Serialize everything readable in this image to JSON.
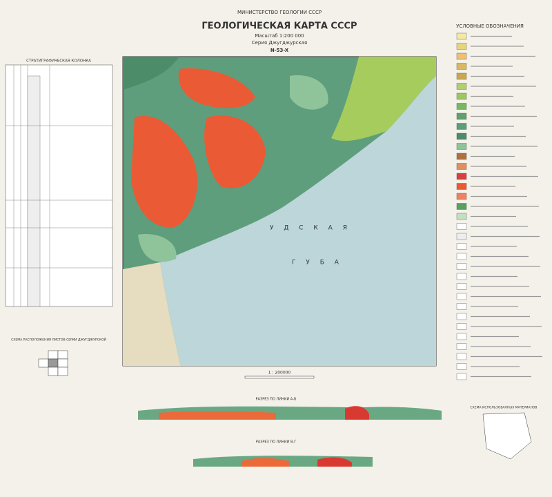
{
  "header": {
    "ministry": "МИНИСТЕРСТВО ГЕОЛОГИИ СССР",
    "title": "ГЕОЛОГИЧЕСКАЯ КАРТА СССР",
    "scale": "Масштаб 1:200 000",
    "series": "Серия Джугджурская",
    "sheet": "N-53-X"
  },
  "column": {
    "title": "СТРАТИГРАФИЧЕСКАЯ КОЛОНКА"
  },
  "legend": {
    "title": "УСЛОВНЫЕ ОБОЗНАЧЕНИЯ"
  },
  "map": {
    "sea_labels": [
      "У Д С К А Я",
      "Г У Б А"
    ],
    "scale_bar": "1 : 200000"
  },
  "sections": [
    "РАЗРЕЗ ПО ЛИНИИ А-Б",
    "РАЗРЕЗ ПО ЛИНИИ В-Г"
  ],
  "index": {
    "title": "СХЕМА РАСПОЛОЖЕНИЯ ЛИСТОВ СЕРИИ ДЖУГДЖУРСКОЙ"
  },
  "materials": {
    "title": "СХЕМА ИСПОЛЬЗОВАННЫХ МАТЕРИАЛОВ"
  }
}
